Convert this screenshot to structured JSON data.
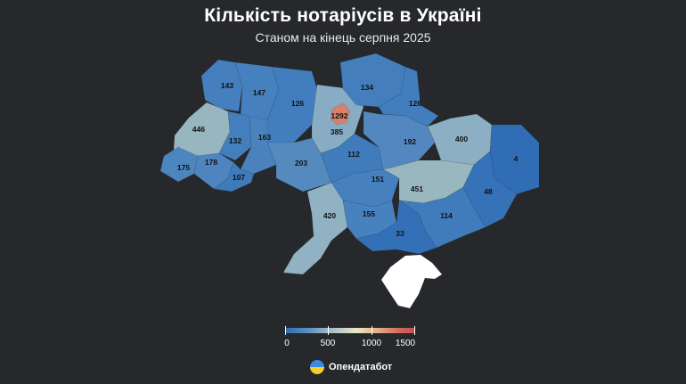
{
  "header": {
    "title": "Кількість нотаріусів в Україні",
    "subtitle": "Станом на кінець серпня 2025"
  },
  "map": {
    "regions": [
      {
        "id": "volyn",
        "value": "143"
      },
      {
        "id": "rivne",
        "value": "147"
      },
      {
        "id": "zhytomyr",
        "value": "126"
      },
      {
        "id": "chernihiv",
        "value": "134"
      },
      {
        "id": "sumy",
        "value": "126"
      },
      {
        "id": "kyiv-city",
        "value": "1292"
      },
      {
        "id": "kyiv-oblast",
        "value": "385"
      },
      {
        "id": "lviv",
        "value": "446"
      },
      {
        "id": "ternopil",
        "value": "132"
      },
      {
        "id": "khmelnytskyi",
        "value": "163"
      },
      {
        "id": "poltava",
        "value": "192"
      },
      {
        "id": "kharkiv",
        "value": "400"
      },
      {
        "id": "luhansk",
        "value": "4"
      },
      {
        "id": "zakarpattia",
        "value": "175"
      },
      {
        "id": "ivano-frankivsk",
        "value": "178"
      },
      {
        "id": "chernivtsi",
        "value": "107"
      },
      {
        "id": "vinnytsia",
        "value": "203"
      },
      {
        "id": "cherkasy",
        "value": "112"
      },
      {
        "id": "kirovohrad",
        "value": "151"
      },
      {
        "id": "dnipropetrovsk",
        "value": "451"
      },
      {
        "id": "donetsk",
        "value": "48"
      },
      {
        "id": "odesa",
        "value": "420"
      },
      {
        "id": "mykolaiv",
        "value": "155"
      },
      {
        "id": "zaporizhzhia",
        "value": "114"
      },
      {
        "id": "kherson",
        "value": "33"
      }
    ],
    "crimea_color": "#ffffff",
    "capital_marker_color": "#c84a4d"
  },
  "legend": {
    "ticks": [
      "0",
      "500",
      "1000",
      "1500"
    ],
    "colors": [
      "#2f6cb5",
      "#9cb8c4",
      "#e9e8c2",
      "#c84a4d"
    ]
  },
  "footer": {
    "brand": "Опендатабот",
    "logo_icon": "opendatabot-logo-icon"
  }
}
